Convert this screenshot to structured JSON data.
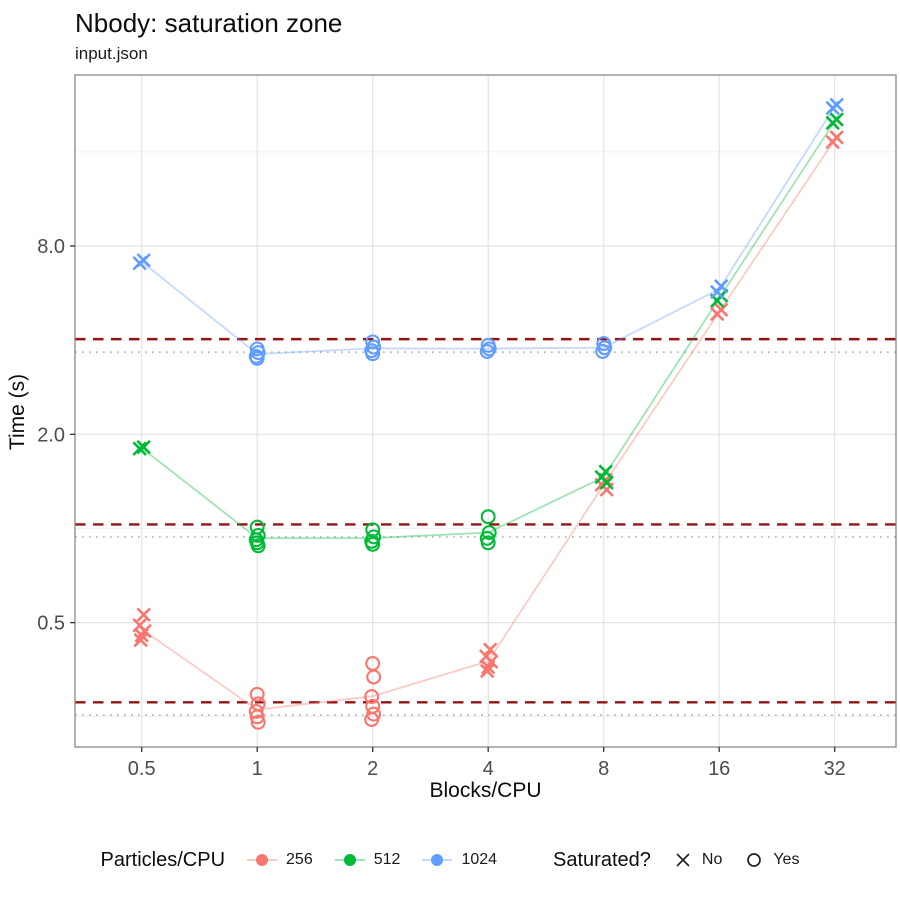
{
  "title": "Nbody: saturation zone",
  "subtitle": "input.json",
  "chart_data": {
    "type": "scatter",
    "xlabel": "Blocks/CPU",
    "ylabel": "Time (s)",
    "x_scale": "log2",
    "y_scale": "log2",
    "x_ticks": [
      {
        "label": "0.5",
        "value": 0.5
      },
      {
        "label": "1",
        "value": 1
      },
      {
        "label": "2",
        "value": 2
      },
      {
        "label": "4",
        "value": 4
      },
      {
        "label": "8",
        "value": 8
      },
      {
        "label": "16",
        "value": 16
      },
      {
        "label": "32",
        "value": 32
      }
    ],
    "y_ticks": [
      {
        "label": "0.5",
        "value": 0.5
      },
      {
        "label": "2.0",
        "value": 2.0
      },
      {
        "label": "8.0",
        "value": 8.0
      }
    ],
    "y_minor_gridlines": [
      0.25,
      1,
      4,
      16
    ],
    "ylim": [
      0.2,
      28
    ],
    "grid": "major-x major-y minor-y",
    "legend_position": "bottom",
    "reference_lines": [
      {
        "style": "dashed",
        "color": "#8B0000",
        "values": [
          4.03,
          1.03,
          0.278
        ]
      },
      {
        "style": "dotted",
        "color": "#B9B9B9",
        "values": [
          3.66,
          0.94,
          0.253
        ]
      }
    ],
    "series": [
      {
        "name": "256",
        "color": "#F8766D",
        "points": [
          {
            "x": 0.5,
            "y": 0.53,
            "saturated": false
          },
          {
            "x": 0.5,
            "y": 0.49,
            "saturated": false
          },
          {
            "x": 0.5,
            "y": 0.47,
            "saturated": false
          },
          {
            "x": 0.5,
            "y": 0.455,
            "saturated": false
          },
          {
            "x": 0.5,
            "y": 0.44,
            "saturated": false
          },
          {
            "x": 1,
            "y": 0.295,
            "saturated": true
          },
          {
            "x": 1,
            "y": 0.275,
            "saturated": true
          },
          {
            "x": 1,
            "y": 0.26,
            "saturated": true
          },
          {
            "x": 1,
            "y": 0.25,
            "saturated": true
          },
          {
            "x": 1,
            "y": 0.24,
            "saturated": true
          },
          {
            "x": 2,
            "y": 0.37,
            "saturated": true
          },
          {
            "x": 2,
            "y": 0.335,
            "saturated": true
          },
          {
            "x": 2,
            "y": 0.29,
            "saturated": true
          },
          {
            "x": 2,
            "y": 0.27,
            "saturated": true
          },
          {
            "x": 2,
            "y": 0.255,
            "saturated": true
          },
          {
            "x": 2,
            "y": 0.245,
            "saturated": true
          },
          {
            "x": 4,
            "y": 0.41,
            "saturated": false
          },
          {
            "x": 4,
            "y": 0.39,
            "saturated": false
          },
          {
            "x": 4,
            "y": 0.375,
            "saturated": false
          },
          {
            "x": 4,
            "y": 0.36,
            "saturated": false
          },
          {
            "x": 4,
            "y": 0.35,
            "saturated": false
          },
          {
            "x": 8,
            "y": 1.43,
            "saturated": false
          },
          {
            "x": 8,
            "y": 1.38,
            "saturated": false
          },
          {
            "x": 8,
            "y": 1.33,
            "saturated": false
          },
          {
            "x": 16,
            "y": 5.0,
            "saturated": false
          },
          {
            "x": 16,
            "y": 4.85,
            "saturated": false
          },
          {
            "x": 32,
            "y": 17.8,
            "saturated": false
          },
          {
            "x": 32,
            "y": 17.2,
            "saturated": false
          }
        ]
      },
      {
        "name": "512",
        "color": "#00BA38",
        "points": [
          {
            "x": 0.5,
            "y": 1.82,
            "saturated": false
          },
          {
            "x": 0.5,
            "y": 1.8,
            "saturated": false
          },
          {
            "x": 1,
            "y": 1.01,
            "saturated": true
          },
          {
            "x": 1,
            "y": 0.95,
            "saturated": true
          },
          {
            "x": 1,
            "y": 0.92,
            "saturated": true
          },
          {
            "x": 1,
            "y": 0.9,
            "saturated": true
          },
          {
            "x": 1,
            "y": 0.88,
            "saturated": true
          },
          {
            "x": 2,
            "y": 0.99,
            "saturated": true
          },
          {
            "x": 2,
            "y": 0.94,
            "saturated": true
          },
          {
            "x": 2,
            "y": 0.91,
            "saturated": true
          },
          {
            "x": 2,
            "y": 0.89,
            "saturated": true
          },
          {
            "x": 4,
            "y": 1.09,
            "saturated": true
          },
          {
            "x": 4,
            "y": 0.97,
            "saturated": true
          },
          {
            "x": 4,
            "y": 0.93,
            "saturated": true
          },
          {
            "x": 4,
            "y": 0.9,
            "saturated": true
          },
          {
            "x": 8,
            "y": 1.52,
            "saturated": false
          },
          {
            "x": 8,
            "y": 1.46,
            "saturated": false
          },
          {
            "x": 8,
            "y": 1.4,
            "saturated": false
          },
          {
            "x": 16,
            "y": 5.55,
            "saturated": false
          },
          {
            "x": 16,
            "y": 5.35,
            "saturated": false
          },
          {
            "x": 32,
            "y": 20.3,
            "saturated": false
          },
          {
            "x": 32,
            "y": 19.8,
            "saturated": false
          }
        ]
      },
      {
        "name": "1024",
        "color": "#619CFF",
        "points": [
          {
            "x": 0.5,
            "y": 7.2,
            "saturated": false
          },
          {
            "x": 0.5,
            "y": 7.05,
            "saturated": false
          },
          {
            "x": 1,
            "y": 3.75,
            "saturated": true
          },
          {
            "x": 1,
            "y": 3.65,
            "saturated": true
          },
          {
            "x": 1,
            "y": 3.55,
            "saturated": true
          },
          {
            "x": 1,
            "y": 3.5,
            "saturated": true
          },
          {
            "x": 2,
            "y": 3.95,
            "saturated": true
          },
          {
            "x": 2,
            "y": 3.8,
            "saturated": true
          },
          {
            "x": 2,
            "y": 3.7,
            "saturated": true
          },
          {
            "x": 2,
            "y": 3.62,
            "saturated": true
          },
          {
            "x": 4,
            "y": 3.85,
            "saturated": true
          },
          {
            "x": 4,
            "y": 3.75,
            "saturated": true
          },
          {
            "x": 4,
            "y": 3.68,
            "saturated": true
          },
          {
            "x": 8,
            "y": 3.9,
            "saturated": true
          },
          {
            "x": 8,
            "y": 3.78,
            "saturated": true
          },
          {
            "x": 8,
            "y": 3.68,
            "saturated": true
          },
          {
            "x": 16,
            "y": 5.95,
            "saturated": false
          },
          {
            "x": 16,
            "y": 5.7,
            "saturated": false
          },
          {
            "x": 32,
            "y": 22.6,
            "saturated": false
          },
          {
            "x": 32,
            "y": 22.1,
            "saturated": false
          }
        ]
      }
    ],
    "legend": {
      "color_legend": {
        "title": "Particles/CPU",
        "items": [
          "256",
          "512",
          "1024"
        ]
      },
      "shape_legend": {
        "title": "Saturated?",
        "items": [
          {
            "shape": "x",
            "label": "No"
          },
          {
            "shape": "circle",
            "label": "Yes"
          }
        ]
      }
    }
  }
}
